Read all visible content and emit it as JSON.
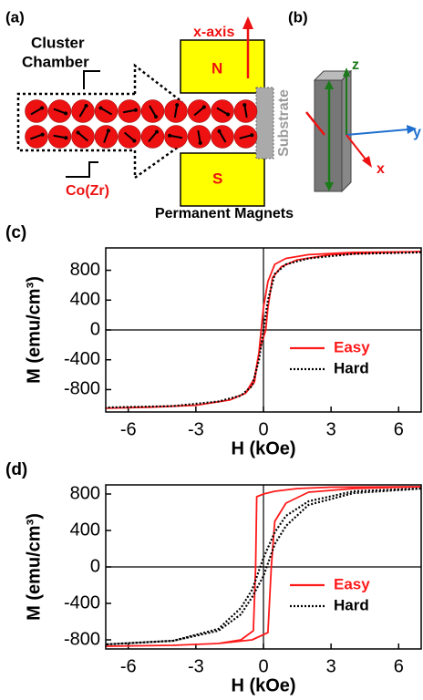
{
  "schematic": {
    "label_a": "(a)",
    "label_b": "(b)",
    "cluster_chamber": [
      "Cluster",
      "Chamber"
    ],
    "co_zr": "Co(Zr)",
    "x_axis": "x-axis",
    "north": "N",
    "south": "S",
    "substrate": "Substrate",
    "magnets": "Permanent Magnets",
    "axis_z": "z",
    "axis_y": "y",
    "axis_x": "x"
  },
  "chart_data": [
    {
      "type": "line",
      "panel": "(c)",
      "ylabel": "M (emu/cm³)",
      "xlabel": "H (kOe)",
      "xlim": [
        -7,
        7
      ],
      "xticks": [
        -6,
        -3,
        0,
        3,
        6
      ],
      "ylim": [
        -1100,
        1100
      ],
      "yticks": [
        -800,
        -400,
        0,
        400,
        800
      ],
      "legend": "lower right",
      "series": [
        {
          "name": "Easy",
          "color": "#ff1a1a",
          "style": "solid",
          "x": [
            7,
            4,
            2,
            1,
            0.5,
            0.2,
            0,
            -0.1,
            -0.2,
            -0.4,
            -0.8,
            -1.5,
            -3,
            -5,
            -7,
            -5,
            -3,
            -1.5,
            -0.8,
            -0.4,
            -0.2,
            0.1,
            0.2,
            0.4,
            0.8,
            1.5,
            3,
            5,
            7
          ],
          "values": [
            1050,
            1040,
            1010,
            960,
            880,
            650,
            300,
            0,
            -300,
            -700,
            -850,
            -940,
            -1010,
            -1035,
            -1050,
            -1035,
            -1010,
            -940,
            -850,
            -650,
            -300,
            0,
            300,
            700,
            850,
            940,
            1010,
            1035,
            1050
          ]
        },
        {
          "name": "Hard",
          "color": "#000000",
          "style": "dotted",
          "x": [
            7,
            4,
            2,
            1,
            0.5,
            0.2,
            0,
            -0.2,
            -0.5,
            -1,
            -2,
            -4,
            -7
          ],
          "values": [
            1040,
            1020,
            960,
            880,
            750,
            400,
            0,
            -400,
            -750,
            -880,
            -960,
            -1020,
            -1040
          ]
        }
      ]
    },
    {
      "type": "line",
      "panel": "(d)",
      "ylabel": "M (emu/cm³)",
      "xlabel": "H (kOe)",
      "xlim": [
        -7,
        7
      ],
      "xticks": [
        -6,
        -3,
        0,
        3,
        6
      ],
      "ylim": [
        -900,
        900
      ],
      "yticks": [
        -800,
        -400,
        0,
        400,
        800
      ],
      "legend": "lower right",
      "series": [
        {
          "name": "Easy",
          "color": "#ff1a1a",
          "style": "solid",
          "x": [
            7,
            3,
            1.5,
            0.5,
            0,
            -0.3,
            -0.35,
            -0.45,
            -1,
            -2,
            -4,
            -7,
            -4,
            -2,
            -0.5,
            0.2,
            0.35,
            0.5,
            1,
            2,
            4,
            7
          ],
          "values": [
            880,
            875,
            860,
            830,
            800,
            770,
            0,
            -700,
            -800,
            -840,
            -860,
            -870,
            -860,
            -840,
            -800,
            -720,
            0,
            500,
            700,
            820,
            860,
            880
          ]
        },
        {
          "name": "Hard",
          "color": "#000000",
          "style": "dotted",
          "x": [
            7,
            4,
            2,
            1,
            0.5,
            0,
            -0.5,
            -1,
            -2,
            -4,
            -7,
            -4,
            -2,
            -1,
            -0.5,
            0,
            0.5,
            1,
            2,
            4,
            7
          ],
          "values": [
            860,
            830,
            720,
            560,
            380,
            100,
            -250,
            -450,
            -680,
            -810,
            -850,
            -810,
            -700,
            -520,
            -330,
            -100,
            250,
            450,
            680,
            810,
            860
          ]
        }
      ]
    }
  ]
}
